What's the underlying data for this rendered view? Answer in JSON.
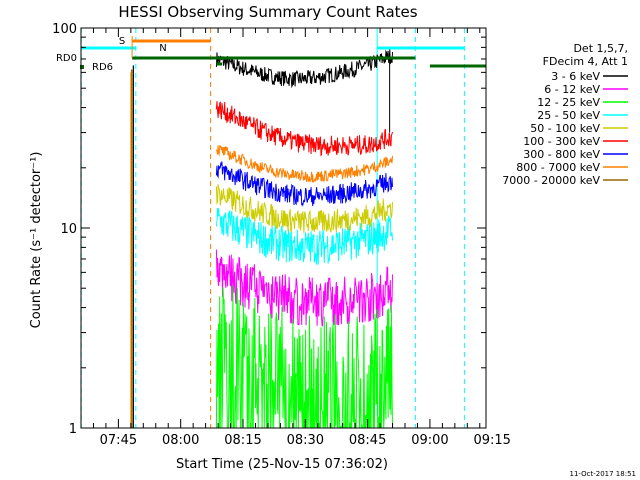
{
  "chart_data": {
    "type": "line",
    "title": "HESSI Observing Summary Count Rates",
    "xlabel": "Start Time (25-Nov-15 07:36:02)",
    "ylabel": "Count Rate (s⁻¹ detector⁻¹)",
    "y_scale": "log",
    "ylim": [
      1,
      100
    ],
    "y_ticks": [
      {
        "value": 1,
        "label": "1"
      },
      {
        "value": 10,
        "label": "10"
      },
      {
        "value": 100,
        "label": "100"
      }
    ],
    "xlim_minutes": [
      0,
      97.5
    ],
    "x_ticks": [
      {
        "minute": 9,
        "label": "07:45"
      },
      {
        "minute": 24,
        "label": "08:00"
      },
      {
        "minute": 39,
        "label": "08:15"
      },
      {
        "minute": 54,
        "label": "08:30"
      },
      {
        "minute": 69,
        "label": "08:45"
      },
      {
        "minute": 84,
        "label": "09:00"
      },
      {
        "minute": 99,
        "label": "09:15"
      }
    ],
    "legend_header": [
      "Det 1,5,7,",
      "FDecim 4, Att 1"
    ],
    "legend_position": "right",
    "series": [
      {
        "name": "3 - 6 keV",
        "color": "#000000",
        "level": [
          70,
          65
        ]
      },
      {
        "name": "6 - 12 keV",
        "color": "#ff00ff",
        "level": [
          6.5,
          4.5
        ]
      },
      {
        "name": "12 - 25 keV",
        "color": "#00ff00",
        "level": [
          2.6,
          1.6
        ]
      },
      {
        "name": "25 - 50 keV",
        "color": "#00ffff",
        "level": [
          11,
          8.5
        ]
      },
      {
        "name": "50 - 100 keV",
        "color": "#cccc00",
        "level": [
          15,
          11
        ]
      },
      {
        "name": "100 - 300 keV",
        "color": "#ff0000",
        "level": [
          40,
          24
        ]
      },
      {
        "name": "300 - 800 keV",
        "color": "#0000ff",
        "level": [
          20,
          15
        ]
      },
      {
        "name": "800 - 7000 keV",
        "color": "#ff8000",
        "level": [
          25,
          19
        ]
      },
      {
        "name": "7000 - 20000 keV",
        "color": "#996600",
        "level": [
          1,
          1
        ]
      }
    ],
    "flags": [
      {
        "label": "S",
        "color": "#ff8000"
      },
      {
        "label": "N",
        "color": "#00ffff"
      },
      {
        "label": "RD0",
        "color": "#006600"
      },
      {
        "label": "RD6",
        "color": "#006600"
      }
    ]
  },
  "footer_timestamp": "11-Oct-2017 18:51"
}
